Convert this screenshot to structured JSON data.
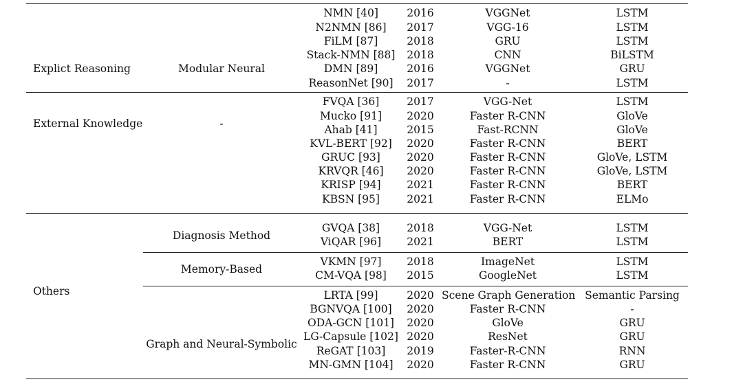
{
  "groups": {
    "explicit": {
      "category": "Explict Reasoning",
      "subcategory": "Modular Neural",
      "rows": [
        {
          "method": "NMN [40]",
          "year": "2016",
          "visual": "VGGNet",
          "text": "LSTM"
        },
        {
          "method": "N2NMN [86]",
          "year": "2017",
          "visual": "VGG-16",
          "text": "LSTM"
        },
        {
          "method": "FiLM [87]",
          "year": "2018",
          "visual": "GRU",
          "text": "LSTM"
        },
        {
          "method": "Stack-NMN [88]",
          "year": "2018",
          "visual": "CNN",
          "text": "BiLSTM"
        },
        {
          "method": "DMN [89]",
          "year": "2016",
          "visual": "VGGNet",
          "text": "GRU"
        },
        {
          "method": "ReasonNet [90]",
          "year": "2017",
          "visual": "-",
          "text": "LSTM"
        }
      ]
    },
    "external": {
      "category": "External Knowledge",
      "subcategory": "-",
      "rows": [
        {
          "method": "FVQA [36]",
          "year": "2017",
          "visual": "VGG-Net",
          "text": "LSTM"
        },
        {
          "method": "Mucko [91]",
          "year": "2020",
          "visual": "Faster R-CNN",
          "text": "GloVe"
        },
        {
          "method": "Ahab [41]",
          "year": "2015",
          "visual": "Fast-RCNN",
          "text": "GloVe"
        },
        {
          "method": "KVL-BERT [92]",
          "year": "2020",
          "visual": "Faster R-CNN",
          "text": "BERT"
        },
        {
          "method": "GRUC [93]",
          "year": "2020",
          "visual": "Faster R-CNN",
          "text": "GloVe, LSTM"
        },
        {
          "method": "KRVQR [46]",
          "year": "2020",
          "visual": "Faster R-CNN",
          "text": "GloVe, LSTM"
        },
        {
          "method": "KRISP [94]",
          "year": "2021",
          "visual": "Faster R-CNN",
          "text": "BERT"
        },
        {
          "method": "KBSN [95]",
          "year": "2021",
          "visual": "Faster R-CNN",
          "text": "ELMo"
        }
      ]
    },
    "others": {
      "category": "Others",
      "diagnosis": {
        "subcategory": "Diagnosis Method",
        "rows": [
          {
            "method": "GVQA [38]",
            "year": "2018",
            "visual": "VGG-Net",
            "text": "LSTM"
          },
          {
            "method": "ViQAR [96]",
            "year": "2021",
            "visual": "BERT",
            "text": "LSTM"
          }
        ]
      },
      "memory": {
        "subcategory": "Memory-Based",
        "rows": [
          {
            "method": "VKMN [97]",
            "year": "2018",
            "visual": "ImageNet",
            "text": "LSTM"
          },
          {
            "method": "CM-VQA [98]",
            "year": "2015",
            "visual": "GoogleNet",
            "text": "LSTM"
          }
        ]
      },
      "graph": {
        "subcategory": "Graph and Neural-Symbolic",
        "rows": [
          {
            "method": "LRTA [99]",
            "year": "2020",
            "visual": "Scene Graph Generation",
            "text": "Semantic Parsing"
          },
          {
            "method": "BGNVQA [100]",
            "year": "2020",
            "visual": "Faster R-CNN",
            "text": "-"
          },
          {
            "method": "ODA-GCN [101]",
            "year": "2020",
            "visual": "GloVe",
            "text": "GRU"
          },
          {
            "method": "LG-Capsule [102]",
            "year": "2020",
            "visual": "ResNet",
            "text": "GRU"
          },
          {
            "method": "ReGAT [103]",
            "year": "2019",
            "visual": "Faster-R-CNN",
            "text": "RNN"
          },
          {
            "method": "MN-GMN [104]",
            "year": "2020",
            "visual": "Faster R-CNN",
            "text": "GRU"
          }
        ]
      }
    }
  }
}
